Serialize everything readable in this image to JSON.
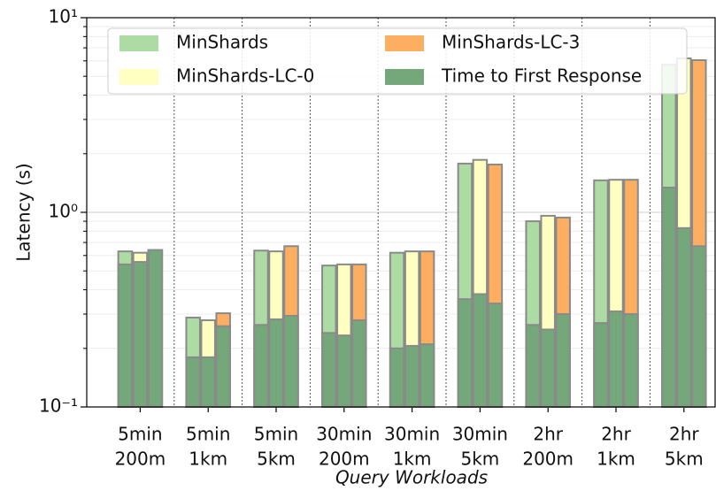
{
  "chart_data": {
    "type": "grouped-overlay-bar",
    "xlabel": "Query Workloads",
    "ylabel": "Latency (s)",
    "categories": [
      [
        "5min",
        "200m"
      ],
      [
        "5min",
        "1km"
      ],
      [
        "5min",
        "5km"
      ],
      [
        "30min",
        "200m"
      ],
      [
        "30min",
        "1km"
      ],
      [
        "30min",
        "5km"
      ],
      [
        "2hr",
        "200m"
      ],
      [
        "2hr",
        "1km"
      ],
      [
        "2hr",
        "5km"
      ]
    ],
    "series": [
      {
        "name": "MinShards",
        "color": "#acdca3",
        "values": [
          0.63,
          0.288,
          0.636,
          0.533,
          0.62,
          1.78,
          0.9,
          1.46,
          5.74
        ]
      },
      {
        "name": "MinShards-LC-0",
        "color": "#ffffc2",
        "values": [
          0.62,
          0.279,
          0.63,
          0.54,
          0.63,
          1.86,
          0.96,
          1.47,
          6.18
        ]
      },
      {
        "name": "MinShards-LC-3",
        "color": "#fdae61",
        "values": [
          0.64,
          0.303,
          0.67,
          0.54,
          0.63,
          1.76,
          0.94,
          1.47,
          6.05
        ]
      },
      {
        "name": "Time to First Response",
        "color": "#74a87a",
        "values": [
          [
            0.54,
            0.556,
            0.64
          ],
          [
            0.18,
            0.18,
            0.26
          ],
          [
            0.264,
            0.282,
            0.294
          ],
          [
            0.24,
            0.233,
            0.279
          ],
          [
            0.2,
            0.206,
            0.21
          ],
          [
            0.358,
            0.38,
            0.34
          ],
          [
            0.264,
            0.25,
            0.3
          ],
          [
            0.27,
            0.31,
            0.3
          ],
          [
            1.34,
            0.83,
            0.67
          ]
        ]
      }
    ],
    "log_y": true,
    "ylim": [
      0.1,
      10
    ],
    "yticks": [
      {
        "value": 0.1,
        "label": "10⁻¹"
      },
      {
        "value": 1,
        "label": "10⁰"
      },
      {
        "value": 10,
        "label": "10¹"
      }
    ],
    "yminorticks": [
      0.2,
      0.3,
      0.4,
      0.5,
      0.6,
      0.7,
      0.8,
      0.9,
      2,
      3,
      4,
      5,
      6,
      7,
      8,
      9
    ],
    "grid": true,
    "legend": "upper left"
  }
}
